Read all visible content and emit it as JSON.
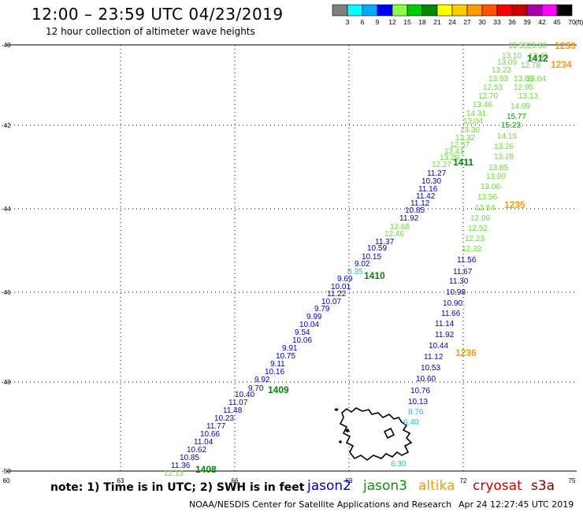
{
  "header": {
    "title": "12:00 – 23:59 UTC 04/23/2019",
    "subtitle": "12 hour collection of altimeter wave heights"
  },
  "legend": {
    "unit": "(ft)",
    "bins": [
      {
        "label": "3",
        "color": "#808080"
      },
      {
        "label": "6",
        "color": "#00ffff"
      },
      {
        "label": "9",
        "color": "#00aaff"
      },
      {
        "label": "12",
        "color": "#0000ff"
      },
      {
        "label": "15",
        "color": "#88ff44"
      },
      {
        "label": "18",
        "color": "#00cc00"
      },
      {
        "label": "21",
        "color": "#008800"
      },
      {
        "label": "24",
        "color": "#ffff00"
      },
      {
        "label": "27",
        "color": "#ffcc00"
      },
      {
        "label": "30",
        "color": "#ff9900"
      },
      {
        "label": "33",
        "color": "#ff5500"
      },
      {
        "label": "36",
        "color": "#ff0000"
      },
      {
        "label": "39",
        "color": "#cc0000"
      },
      {
        "label": "42",
        "color": "#aa00aa"
      },
      {
        "label": "45",
        "color": "#ff00ff"
      },
      {
        "label": "70",
        "color": "#000000"
      }
    ]
  },
  "axes": {
    "lon_ticks": [
      "60",
      "63",
      "66",
      "69",
      "72",
      "75"
    ],
    "lat_ticks": [
      "-40",
      "-42",
      "-44",
      "-46",
      "-48",
      "-50"
    ]
  },
  "track_labels": [
    {
      "text": "13.55",
      "col": "lg"
    },
    {
      "text": "13.80",
      "col": "lg"
    },
    {
      "text": "13.10",
      "col": "lg"
    },
    {
      "text": "13.41",
      "col": "lg"
    },
    {
      "text": "13.09",
      "col": "lg"
    },
    {
      "text": "12.78",
      "col": "lg"
    },
    {
      "text": "13.23",
      "col": "lg"
    },
    {
      "text": "13.68",
      "col": "lg"
    },
    {
      "text": "13.53",
      "col": "lg"
    },
    {
      "text": "13.04",
      "col": "lg"
    },
    {
      "text": "12.53",
      "col": "lg"
    },
    {
      "text": "12.95",
      "col": "lg"
    },
    {
      "text": "12.70",
      "col": "lg"
    },
    {
      "text": "13.13",
      "col": "lg"
    },
    {
      "text": "13.46",
      "col": "lg"
    },
    {
      "text": "14.09",
      "col": "lg"
    },
    {
      "text": "14.31",
      "col": "lg"
    },
    {
      "text": "15.77",
      "col": "g"
    },
    {
      "text": "13.04",
      "col": "lg"
    },
    {
      "text": "15.23",
      "col": "g"
    },
    {
      "text": "13.30",
      "col": "lg"
    },
    {
      "text": "13.32",
      "col": "lg"
    },
    {
      "text": "14.15",
      "col": "lg"
    },
    {
      "text": "12.57",
      "col": "lg"
    },
    {
      "text": "13.26",
      "col": "lg"
    },
    {
      "text": "13.41",
      "col": "lg"
    },
    {
      "text": "13.29",
      "col": "lg"
    },
    {
      "text": "13.28",
      "col": "lg"
    },
    {
      "text": "12.27",
      "col": "lg"
    },
    {
      "text": "13.85",
      "col": "lg"
    },
    {
      "text": "11.27",
      "col": "b"
    },
    {
      "text": "10.30",
      "col": "b"
    },
    {
      "text": "13.00",
      "col": "lg"
    },
    {
      "text": "11.16",
      "col": "b"
    },
    {
      "text": "13.06",
      "col": "lg"
    },
    {
      "text": "11.42",
      "col": "b"
    },
    {
      "text": "11.12",
      "col": "b"
    },
    {
      "text": "13.56",
      "col": "lg"
    },
    {
      "text": "10.85",
      "col": "b"
    },
    {
      "text": "12.54",
      "col": "lg"
    },
    {
      "text": "11.92",
      "col": "b"
    },
    {
      "text": "12.06",
      "col": "lg"
    },
    {
      "text": "12.68",
      "col": "lg"
    },
    {
      "text": "12.52",
      "col": "lg"
    },
    {
      "text": "12.46",
      "col": "lg"
    },
    {
      "text": "12.23",
      "col": "lg"
    },
    {
      "text": "11.37",
      "col": "b"
    },
    {
      "text": "10.59",
      "col": "b"
    },
    {
      "text": "12.32",
      "col": "lg"
    },
    {
      "text": "10.15",
      "col": "b"
    },
    {
      "text": "11.56",
      "col": "b"
    },
    {
      "text": "9.02",
      "col": "b"
    },
    {
      "text": "11.67",
      "col": "b"
    },
    {
      "text": "8.35",
      "col": "c"
    },
    {
      "text": "9.69",
      "col": "b"
    },
    {
      "text": "11.30",
      "col": "b"
    },
    {
      "text": "10.01",
      "col": "b"
    },
    {
      "text": "10.98",
      "col": "b"
    },
    {
      "text": "11.22",
      "col": "b"
    },
    {
      "text": "10.07",
      "col": "b"
    },
    {
      "text": "10.90",
      "col": "b"
    },
    {
      "text": "9.79",
      "col": "b"
    },
    {
      "text": "11.66",
      "col": "b"
    },
    {
      "text": "9.99",
      "col": "b"
    },
    {
      "text": "11.14",
      "col": "b"
    },
    {
      "text": "10.04",
      "col": "b"
    },
    {
      "text": "9.54",
      "col": "b"
    },
    {
      "text": "11.92",
      "col": "b"
    },
    {
      "text": "10.06",
      "col": "b"
    },
    {
      "text": "10.44",
      "col": "b"
    },
    {
      "text": "9.91",
      "col": "b"
    },
    {
      "text": "10.75",
      "col": "b"
    },
    {
      "text": "11.12",
      "col": "b"
    },
    {
      "text": "9.11",
      "col": "b"
    },
    {
      "text": "10.53",
      "col": "b"
    },
    {
      "text": "10.16",
      "col": "b"
    },
    {
      "text": "9.92",
      "col": "b"
    },
    {
      "text": "10.60",
      "col": "b"
    },
    {
      "text": "9.70",
      "col": "b"
    },
    {
      "text": "10.76",
      "col": "b"
    },
    {
      "text": "10.40",
      "col": "b"
    },
    {
      "text": "11.07",
      "col": "b"
    },
    {
      "text": "10.13",
      "col": "b"
    },
    {
      "text": "11.48",
      "col": "b"
    },
    {
      "text": "8.76",
      "col": "c"
    },
    {
      "text": "10.23",
      "col": "b"
    },
    {
      "text": "6.40",
      "col": "c"
    },
    {
      "text": "11.77",
      "col": "b"
    },
    {
      "text": "10.66",
      "col": "b"
    },
    {
      "text": "11.04",
      "col": "b"
    },
    {
      "text": "10.62",
      "col": "b"
    },
    {
      "text": "10.85",
      "col": "b"
    },
    {
      "text": "11.36",
      "col": "b"
    },
    {
      "text": "12.13",
      "col": "lg"
    },
    {
      "text": "6.30",
      "col": "c"
    }
  ],
  "time_labels": [
    {
      "text": "1233",
      "col": "o"
    },
    {
      "text": "1412",
      "col": "dg"
    },
    {
      "text": "1234",
      "col": "o"
    },
    {
      "text": "1411",
      "col": "dg"
    },
    {
      "text": "1235",
      "col": "o"
    },
    {
      "text": "1410",
      "col": "dg"
    },
    {
      "text": "1236",
      "col": "o"
    },
    {
      "text": "1409",
      "col": "dg"
    },
    {
      "text": "1408",
      "col": "dg"
    }
  ],
  "footer": {
    "note": "note: 1) Time is in UTC; 2) SWH is in feet",
    "satellites": [
      {
        "name": "jason2",
        "color": "#0000cc"
      },
      {
        "name": "jason3",
        "color": "#009900"
      },
      {
        "name": "altika",
        "color": "#ff9900"
      },
      {
        "name": "cryosat",
        "color": "#cc0000"
      },
      {
        "name": "s3a",
        "color": "#880000"
      }
    ],
    "credit": "NOAA/NESDIS Center for Satellite Applications and Research",
    "timestamp": "Apr 24 12:27:45 UTC 2019"
  }
}
